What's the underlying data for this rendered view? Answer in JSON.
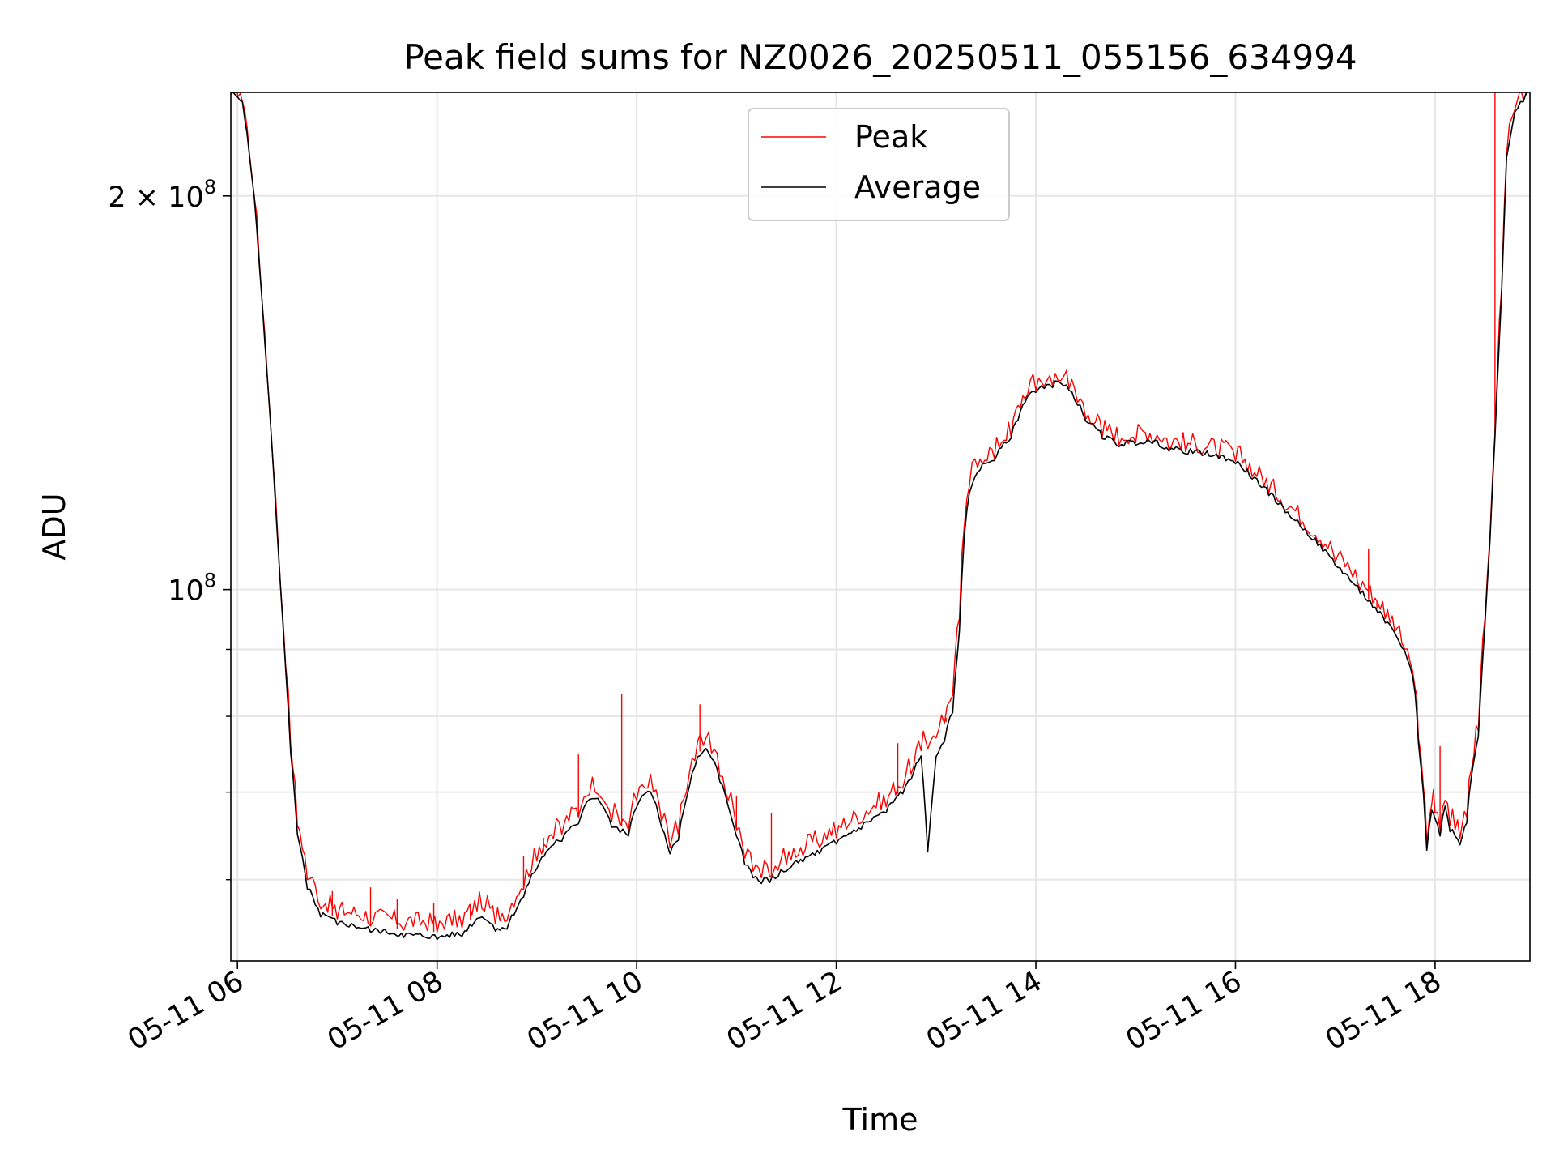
{
  "chart_data": {
    "type": "line",
    "title": "Peak field sums for NZ0026_20250511_055156_634994",
    "xlabel": "Time",
    "ylabel": "ADU",
    "y_scale": "log",
    "xlim": [
      "2025-05-11 05:56",
      "2025-05-11 18:57"
    ],
    "ylim": [
      52000000,
      240000000
    ],
    "x_ticks": [
      {
        "value": "2025-05-11 06:00",
        "label": "05-11 06"
      },
      {
        "value": "2025-05-11 08:00",
        "label": "05-11 08"
      },
      {
        "value": "2025-05-11 10:00",
        "label": "05-11 10"
      },
      {
        "value": "2025-05-11 12:00",
        "label": "05-11 12"
      },
      {
        "value": "2025-05-11 14:00",
        "label": "05-11 14"
      },
      {
        "value": "2025-05-11 16:00",
        "label": "05-11 16"
      },
      {
        "value": "2025-05-11 18:00",
        "label": "05-11 18"
      }
    ],
    "y_ticks_major": [
      {
        "value": 100000000,
        "base": "10",
        "exp": "8"
      },
      {
        "value": 200000000,
        "base": "2 × 10",
        "exp": "8"
      }
    ],
    "y_ticks_minor": [
      60000000,
      70000000,
      80000000,
      90000000
    ],
    "grid": true,
    "legend_position": "upper center",
    "series": [
      {
        "name": "Peak",
        "color": "#ff0000",
        "x": [
          "05:52",
          "06:03",
          "06:10",
          "06:18",
          "06:26",
          "06:32",
          "06:36",
          "06:42",
          "06:50",
          "07:00",
          "07:20",
          "07:40",
          "08:00",
          "08:15",
          "08:27",
          "08:35",
          "08:42",
          "08:52",
          "09:00",
          "09:10",
          "09:15",
          "09:25",
          "09:30",
          "09:35",
          "09:40",
          "09:45",
          "09:50",
          "09:55",
          "10:00",
          "10:05",
          "10:10",
          "10:15",
          "10:20",
          "10:25",
          "10:30",
          "10:35",
          "10:40",
          "10:45",
          "10:50",
          "10:55",
          "11:00",
          "11:05",
          "11:10",
          "11:15",
          "11:20",
          "11:25",
          "11:30",
          "11:40",
          "11:50",
          "12:00",
          "12:15",
          "12:30",
          "12:40",
          "12:45",
          "12:51",
          "12:55",
          "13:00",
          "13:05",
          "13:10",
          "13:14",
          "13:17",
          "13:20",
          "13:25",
          "13:35",
          "13:45",
          "13:55",
          "14:00",
          "14:05",
          "14:10",
          "14:15",
          "14:20",
          "14:25",
          "14:30",
          "14:40",
          "14:50",
          "15:00",
          "15:10",
          "15:20",
          "15:30",
          "15:40",
          "15:50",
          "16:00",
          "16:10",
          "16:20",
          "16:30",
          "16:45",
          "17:00",
          "17:15",
          "17:30",
          "17:40",
          "17:45",
          "17:48",
          "17:50",
          "17:53",
          "17:55",
          "17:58",
          "18:00",
          "18:03",
          "18:06",
          "18:09",
          "18:12",
          "18:15",
          "18:19",
          "18:22",
          "18:26",
          "18:30",
          "18:33",
          "18:36",
          "18:40",
          "18:43",
          "18:48",
          "18:53",
          "18:57"
        ],
        "y": [
          240000000,
          236000000,
          200000000,
          145000000,
          100000000,
          76000000,
          66000000,
          60000000,
          57000000,
          56000000,
          55300000,
          54900000,
          54700000,
          55100000,
          57000000,
          55500000,
          55800000,
          59000000,
          62000000,
          64500000,
          65000000,
          67000000,
          69500000,
          70000000,
          69000000,
          66500000,
          66000000,
          65500000,
          69000000,
          70500000,
          70000000,
          66500000,
          63500000,
          65000000,
          70000000,
          74000000,
          76000000,
          75000000,
          72000000,
          69000000,
          65500000,
          62300000,
          60900000,
          60200000,
          60300000,
          61000000,
          61600000,
          62600000,
          63500000,
          64600000,
          66300000,
          68200000,
          70500000,
          72300000,
          75300000,
          75500000,
          77000000,
          79000000,
          83000000,
          95000000,
          112000000,
          120000000,
          124000000,
          126000000,
          131000000,
          141000000,
          142000000,
          143000000,
          143300000,
          144500000,
          142500000,
          139000000,
          135000000,
          131000000,
          129000000,
          129500000,
          129800000,
          128000000,
          127500000,
          127000000,
          126300000,
          125300000,
          122000000,
          118500000,
          115000000,
          110000000,
          105000000,
          100000000,
          95000000,
          91000000,
          88000000,
          84000000,
          77000000,
          70500000,
          64000000,
          68500000,
          67500000,
          65500000,
          69000000,
          66000000,
          65500000,
          64500000,
          67000000,
          73000000,
          78000000,
          95000000,
          110000000,
          132000000,
          170000000,
          215000000,
          233000000,
          237000000,
          240000000
        ],
        "spikes": [
          {
            "x": "06:57",
            "y": 58800000
          },
          {
            "x": "07:20",
            "y": 59200000
          },
          {
            "x": "07:36",
            "y": 58000000
          },
          {
            "x": "07:58",
            "y": 57600000
          },
          {
            "x": "08:20",
            "y": 57500000
          },
          {
            "x": "08:52",
            "y": 62600000
          },
          {
            "x": "09:04",
            "y": 64600000
          },
          {
            "x": "09:25",
            "y": 74800000
          },
          {
            "x": "09:51",
            "y": 83200000
          },
          {
            "x": "10:38",
            "y": 81700000
          },
          {
            "x": "11:00",
            "y": 69500000
          },
          {
            "x": "11:21",
            "y": 67500000
          },
          {
            "x": "12:37",
            "y": 76300000
          },
          {
            "x": "13:06",
            "y": 79200000
          },
          {
            "x": "17:20",
            "y": 107500000
          },
          {
            "x": "17:25",
            "y": 97900000
          },
          {
            "x": "18:03",
            "y": 75900000
          },
          {
            "x": "18:36",
            "y": 240000000
          }
        ]
      },
      {
        "name": "Average",
        "color": "#000000",
        "x": [
          "05:52",
          "06:03",
          "06:10",
          "06:18",
          "06:26",
          "06:32",
          "06:36",
          "06:42",
          "06:50",
          "07:00",
          "07:20",
          "07:40",
          "08:00",
          "08:15",
          "08:27",
          "08:35",
          "08:42",
          "08:52",
          "09:00",
          "09:10",
          "09:15",
          "09:25",
          "09:30",
          "09:35",
          "09:40",
          "09:45",
          "09:50",
          "09:55",
          "10:00",
          "10:05",
          "10:10",
          "10:15",
          "10:20",
          "10:25",
          "10:30",
          "10:35",
          "10:40",
          "10:45",
          "10:50",
          "10:55",
          "11:00",
          "11:05",
          "11:10",
          "11:15",
          "11:20",
          "11:25",
          "11:30",
          "11:40",
          "11:50",
          "12:00",
          "12:15",
          "12:30",
          "12:40",
          "12:45",
          "12:51",
          "12:55",
          "13:00",
          "13:05",
          "13:10",
          "13:14",
          "13:17",
          "13:20",
          "13:25",
          "13:35",
          "13:45",
          "13:55",
          "14:00",
          "14:05",
          "14:10",
          "14:15",
          "14:20",
          "14:25",
          "14:30",
          "14:40",
          "14:50",
          "15:00",
          "15:10",
          "15:20",
          "15:30",
          "15:40",
          "15:50",
          "16:00",
          "16:10",
          "16:20",
          "16:30",
          "16:45",
          "17:00",
          "17:15",
          "17:30",
          "17:40",
          "17:45",
          "17:48",
          "17:50",
          "17:53",
          "17:55",
          "17:58",
          "18:00",
          "18:03",
          "18:06",
          "18:09",
          "18:12",
          "18:15",
          "18:19",
          "18:22",
          "18:26",
          "18:30",
          "18:33",
          "18:36",
          "18:40",
          "18:43",
          "18:48",
          "18:53",
          "18:57"
        ],
        "y": [
          240000000,
          236000000,
          200000000,
          145000000,
          100000000,
          75000000,
          65000000,
          59000000,
          56200000,
          55400000,
          54700000,
          54200000,
          54000000,
          54300000,
          56200000,
          54800000,
          55000000,
          58200000,
          61200000,
          63800000,
          64200000,
          66200000,
          68800000,
          69200000,
          68200000,
          65800000,
          65200000,
          64800000,
          68200000,
          69800000,
          69200000,
          65800000,
          62800000,
          64300000,
          69300000,
          73200000,
          75200000,
          74300000,
          71300000,
          68300000,
          64800000,
          61600000,
          60200000,
          59600000,
          59700000,
          60300000,
          60900000,
          61900000,
          62800000,
          63900000,
          65600000,
          67500000,
          69800000,
          71600000,
          74600000,
          63000000,
          74500000,
          76500000,
          80500000,
          93000000,
          110000000,
          118500000,
          123000000,
          125500000,
          130500000,
          140500000,
          141500000,
          142500000,
          142700000,
          143800000,
          142000000,
          138400000,
          134500000,
          130400000,
          128600000,
          129000000,
          129300000,
          127600000,
          127000000,
          126600000,
          125900000,
          124800000,
          121500000,
          118000000,
          114500000,
          109500000,
          104300000,
          99300000,
          94300000,
          90300000,
          87300000,
          83300000,
          76300000,
          69800000,
          63200000,
          67800000,
          66800000,
          64800000,
          68300000,
          65300000,
          64800000,
          63800000,
          66300000,
          72200000,
          77200000,
          94000000,
          109000000,
          131000000,
          169000000,
          214000000,
          232000000,
          236000000,
          240000000
        ]
      }
    ]
  }
}
